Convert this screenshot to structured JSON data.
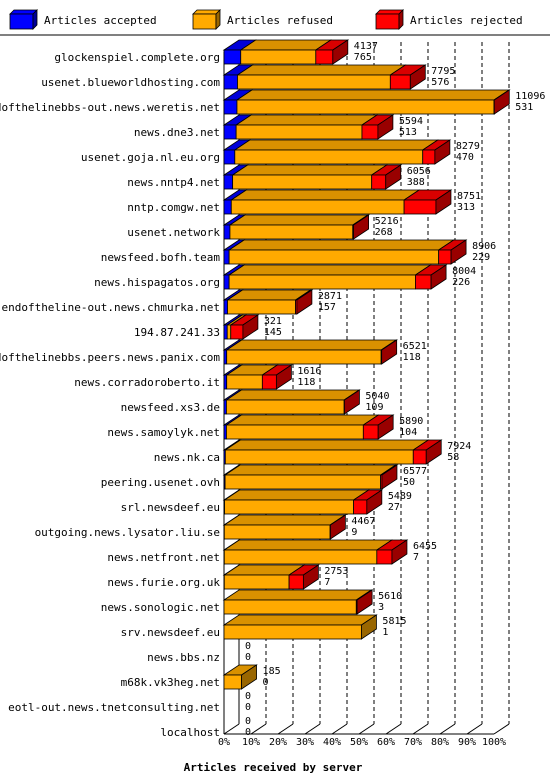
{
  "chart_data": {
    "type": "bar",
    "orientation": "horizontal",
    "stacked": true,
    "xlabel": "Articles received by server",
    "xlim": [
      0,
      100
    ],
    "xticks": [
      "0%",
      "10%",
      "20%",
      "30%",
      "40%",
      "50%",
      "60%",
      "70%",
      "80%",
      "90%",
      "100%"
    ],
    "legend_placement": "top",
    "grid": true,
    "series": [
      {
        "name": "Articles accepted",
        "color": "#0000ff"
      },
      {
        "name": "Articles refused",
        "color": "#ffaa00"
      },
      {
        "name": "Articles rejected",
        "color": "#ff0000"
      }
    ],
    "categories": [
      "glockenspiel.complete.org",
      "usenet.blueworldhosting.com",
      "endofthelinebbs-out.news.weretis.net",
      "news.dne3.net",
      "usenet.goja.nl.eu.org",
      "news.nntp4.net",
      "nntp.comgw.net",
      "usenet.network",
      "newsfeed.bofh.team",
      "news.hispagatos.org",
      "endoftheline-out.news.chmurka.net",
      "194.87.241.33",
      "endofthelinebbs.peers.news.panix.com",
      "news.corradoroberto.it",
      "newsfeed.xs3.de",
      "news.samoylyk.net",
      "news.nk.ca",
      "peering.usenet.ovh",
      "srl.newsdeef.eu",
      "outgoing.news.lysator.liu.se",
      "news.netfront.net",
      "news.furie.org.uk",
      "news.sonologic.net",
      "srv.newsdeef.eu",
      "news.bbs.nz",
      "m68k.vk3heg.net",
      "eotl-out.news.tnetconsulting.net",
      "localhost"
    ],
    "totals": [
      4137,
      7795,
      11096,
      5594,
      8279,
      6056,
      8751,
      5216,
      8906,
      8004,
      2871,
      321,
      6521,
      1616,
      5040,
      5890,
      7924,
      6577,
      5489,
      4467,
      6455,
      2753,
      5610,
      5815,
      0,
      185,
      0,
      0
    ],
    "secondary_values": [
      765,
      576,
      531,
      513,
      470,
      388,
      313,
      268,
      229,
      226,
      157,
      145,
      118,
      118,
      109,
      104,
      58,
      50,
      27,
      9,
      7,
      7,
      3,
      1,
      0,
      0,
      0,
      0
    ],
    "accepted_pct": [
      6.2,
      5.0,
      4.8,
      4.5,
      4.0,
      3.2,
      2.7,
      2.2,
      1.9,
      1.9,
      1.3,
      1.2,
      1.0,
      1.0,
      0.9,
      0.9,
      0.5,
      0.4,
      0.2,
      0.1,
      0.1,
      0.1,
      0.0,
      0.0,
      0,
      0,
      0,
      0
    ],
    "refused_pct": [
      27.8,
      56.6,
      95.2,
      46.6,
      69.6,
      51.5,
      64.0,
      45.5,
      77.6,
      69.0,
      25.2,
      1.3,
      57.2,
      13.2,
      43.6,
      50.7,
      69.6,
      57.6,
      47.8,
      39.2,
      56.5,
      24.0,
      49.0,
      50.9,
      0,
      6.5,
      0,
      0
    ],
    "rejected_pct": [
      6.3,
      7.4,
      0.1,
      5.9,
      4.5,
      5.2,
      11.8,
      0.3,
      4.6,
      5.8,
      0.5,
      4.5,
      0.2,
      5.2,
      0.1,
      5.5,
      4.8,
      0.5,
      4.9,
      0.1,
      5.6,
      5.3,
      0.3,
      0.0,
      0,
      0,
      0,
      0
    ]
  }
}
